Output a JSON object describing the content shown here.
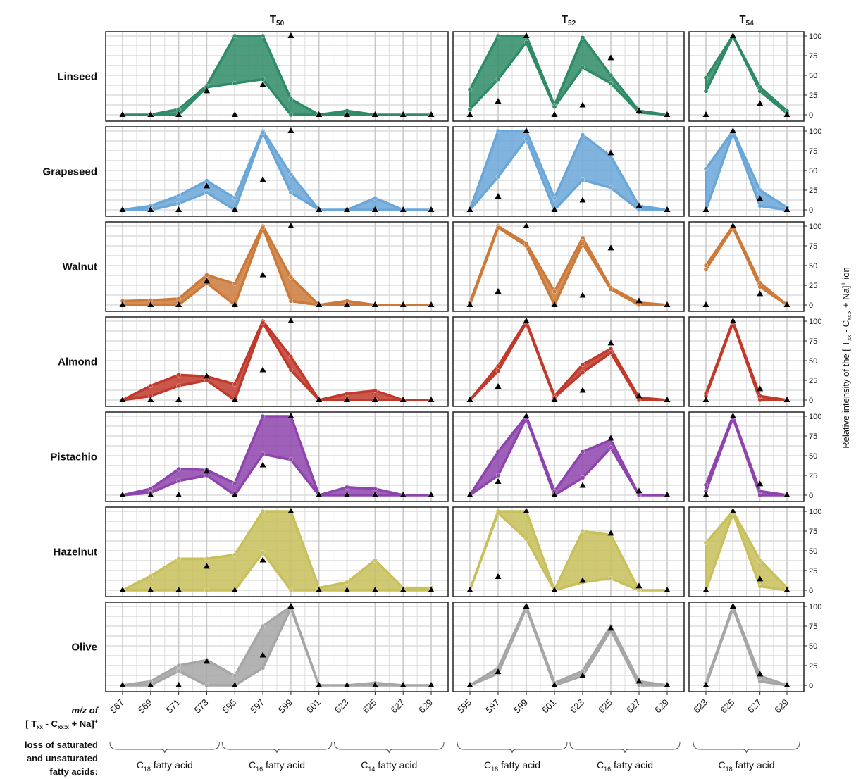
{
  "chart_data": {
    "type": "area",
    "columns": [
      {
        "id": "T50",
        "title": "T",
        "title_sub": "50",
        "x": [
          "567",
          "569",
          "571",
          "573",
          "595",
          "597",
          "599",
          "601",
          "623",
          "625",
          "627",
          "629"
        ],
        "groups": [
          {
            "main": "C",
            "sub": "18",
            "rest": " fatty acid",
            "from": 0,
            "to": 3
          },
          {
            "main": "C",
            "sub": "16",
            "rest": " fatty acid",
            "from": 4,
            "to": 7
          },
          {
            "main": "C",
            "sub": "14",
            "rest": " fatty acid",
            "from": 8,
            "to": 11
          }
        ]
      },
      {
        "id": "T52",
        "title": "T",
        "title_sub": "52",
        "x": [
          "595",
          "597",
          "599",
          "601",
          "623",
          "625",
          "627",
          "629"
        ],
        "groups": [
          {
            "main": "C",
            "sub": "18",
            "rest": " fatty acid",
            "from": 0,
            "to": 3
          },
          {
            "main": "C",
            "sub": "16",
            "rest": " fatty acid",
            "from": 4,
            "to": 7
          }
        ]
      },
      {
        "id": "T54",
        "title": "T",
        "title_sub": "54",
        "x": [
          "623",
          "625",
          "627",
          "629"
        ],
        "groups": [
          {
            "main": "C",
            "sub": "18",
            "rest": " fatty acid",
            "from": 0,
            "to": 3
          }
        ]
      }
    ],
    "rows": [
      {
        "name": "Linseed",
        "color": "#2e8b66",
        "T50": {
          "lo": [
            0,
            0,
            0,
            35,
            40,
            45,
            0,
            0,
            0,
            0,
            0,
            0
          ],
          "hi": [
            0,
            0,
            7,
            37,
            100,
            100,
            20,
            0,
            5,
            0,
            0,
            0
          ]
        },
        "T52": {
          "lo": [
            7,
            45,
            92,
            10,
            60,
            40,
            3,
            0
          ],
          "hi": [
            32,
            100,
            100,
            12,
            98,
            50,
            5,
            0
          ]
        },
        "T54": {
          "lo": [
            30,
            100,
            30,
            2
          ],
          "hi": [
            47,
            100,
            35,
            5
          ]
        }
      },
      {
        "name": "Grapeseed",
        "color": "#6aa6d8",
        "T50": {
          "lo": [
            0,
            0,
            8,
            22,
            0,
            98,
            22,
            0,
            0,
            0,
            0,
            0
          ],
          "hi": [
            0,
            5,
            18,
            37,
            15,
            100,
            45,
            0,
            0,
            15,
            0,
            0
          ]
        },
        "T52": {
          "lo": [
            0,
            42,
            90,
            0,
            38,
            28,
            0,
            0
          ],
          "hi": [
            0,
            100,
            100,
            15,
            95,
            68,
            5,
            0
          ]
        },
        "T54": {
          "lo": [
            0,
            98,
            5,
            0
          ],
          "hi": [
            52,
            100,
            25,
            3
          ]
        }
      },
      {
        "name": "Walnut",
        "color": "#cc7a3a",
        "T50": {
          "lo": [
            0,
            0,
            0,
            28,
            0,
            98,
            5,
            0,
            0,
            0,
            0,
            0
          ],
          "hi": [
            5,
            6,
            8,
            38,
            27,
            100,
            35,
            0,
            5,
            0,
            0,
            0
          ]
        },
        "T52": {
          "lo": [
            0,
            98,
            75,
            0,
            78,
            20,
            0,
            0
          ],
          "hi": [
            3,
            100,
            78,
            17,
            85,
            22,
            3,
            0
          ]
        },
        "T54": {
          "lo": [
            45,
            98,
            23,
            0
          ],
          "hi": [
            50,
            100,
            28,
            0
          ]
        }
      },
      {
        "name": "Almond",
        "color": "#c0392b",
        "T50": {
          "lo": [
            0,
            5,
            18,
            25,
            0,
            98,
            38,
            0,
            0,
            0,
            0,
            0
          ],
          "hi": [
            0,
            18,
            32,
            30,
            20,
            100,
            55,
            0,
            8,
            12,
            0,
            0
          ]
        },
        "T52": {
          "lo": [
            0,
            37,
            98,
            3,
            35,
            60,
            0,
            0
          ],
          "hi": [
            0,
            43,
            100,
            5,
            45,
            65,
            3,
            0
          ]
        },
        "T54": {
          "lo": [
            5,
            98,
            0,
            0
          ],
          "hi": [
            8,
            100,
            5,
            0
          ]
        }
      },
      {
        "name": "Pistachio",
        "color": "#8e44ad",
        "T50": {
          "lo": [
            0,
            3,
            18,
            25,
            0,
            52,
            45,
            0,
            0,
            0,
            0,
            0
          ],
          "hi": [
            0,
            8,
            33,
            32,
            15,
            100,
            100,
            0,
            10,
            8,
            0,
            0
          ]
        },
        "T52": {
          "lo": [
            0,
            25,
            98,
            0,
            22,
            60,
            0,
            0
          ],
          "hi": [
            0,
            55,
            100,
            5,
            55,
            70,
            0,
            0
          ]
        },
        "T54": {
          "lo": [
            5,
            98,
            0,
            0
          ],
          "hi": [
            13,
            100,
            5,
            0
          ]
        }
      },
      {
        "name": "Hazelnut",
        "color": "#c8c05a",
        "T50": {
          "lo": [
            0,
            0,
            0,
            0,
            0,
            48,
            0,
            0,
            0,
            0,
            0,
            0
          ],
          "hi": [
            0,
            18,
            40,
            40,
            45,
            100,
            100,
            3,
            10,
            38,
            3,
            3
          ]
        },
        "T52": {
          "lo": [
            0,
            98,
            65,
            0,
            10,
            15,
            0,
            0
          ],
          "hi": [
            0,
            100,
            100,
            0,
            75,
            70,
            0,
            0
          ]
        },
        "T54": {
          "lo": [
            0,
            98,
            5,
            0
          ],
          "hi": [
            60,
            100,
            38,
            3
          ]
        }
      },
      {
        "name": "Olive",
        "color": "#a6a6a6",
        "T50": {
          "lo": [
            0,
            0,
            18,
            0,
            0,
            22,
            98,
            0,
            0,
            0,
            0,
            0
          ],
          "hi": [
            0,
            5,
            25,
            32,
            12,
            75,
            100,
            0,
            0,
            3,
            0,
            0
          ]
        },
        "T52": {
          "lo": [
            0,
            15,
            98,
            0,
            12,
            70,
            0,
            0
          ],
          "hi": [
            0,
            22,
            100,
            3,
            18,
            75,
            5,
            0
          ]
        },
        "T54": {
          "lo": [
            0,
            98,
            5,
            0
          ],
          "hi": [
            3,
            100,
            12,
            0
          ]
        }
      }
    ],
    "reference_triangles": {
      "T50": [
        0,
        0,
        0,
        30,
        0,
        38,
        100,
        0,
        0,
        0,
        0,
        0
      ],
      "T52": [
        0,
        17,
        100,
        0,
        12,
        72,
        5,
        0
      ],
      "T54": [
        0,
        100,
        14,
        0
      ]
    },
    "ylim": [
      0,
      100
    ],
    "yticks": [
      "0",
      "25",
      "50",
      "75",
      "100"
    ],
    "ylabel": {
      "pre": "Relative intensity of the [ T",
      "s1": "xx",
      "mid": " - C",
      "s2": "xx:x",
      "post": " + Na]",
      "sup": "+",
      "end": " ion"
    },
    "x_axis_label": {
      "line1": "m/z of",
      "line2_a": "[ T",
      "line2_s1": "xx",
      "line2_b": " - C",
      "line2_s2": "xx:x",
      "line2_c": " + Na]",
      "line2_sup": "+"
    },
    "groups_label": [
      "loss of saturated",
      "and unsaturated",
      "fatty acids:"
    ],
    "grid": true
  }
}
